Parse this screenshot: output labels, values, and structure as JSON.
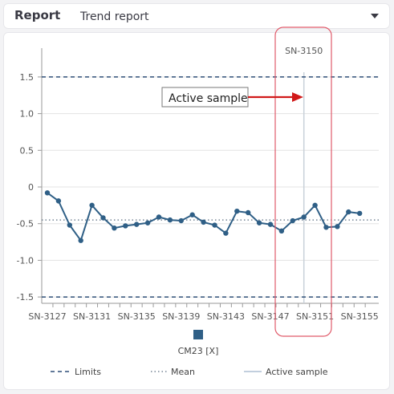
{
  "header": {
    "title": "Report",
    "select_value": "Trend report"
  },
  "colors": {
    "series": "#2f5f86",
    "mean": "#5a6c80",
    "limits": "#2f4f78",
    "active": "#c9d1d9",
    "highlight_box": "#e05a6a",
    "arrow": "#d11a1a",
    "grid": "#e3e3e3"
  },
  "chart_data": {
    "type": "line",
    "y_ticks": [
      -1.5,
      -1.0,
      -0.5,
      0,
      0.5,
      1.0,
      1.5
    ],
    "y_tick_labels": [
      "-1.5",
      "-1.0",
      "-0.5",
      "0",
      "0.5",
      "1.0",
      "1.5"
    ],
    "ylim": [
      -1.6,
      1.6
    ],
    "x_categories": [
      "SN-3127",
      "SN-3128",
      "SN-3129",
      "SN-3130",
      "SN-3131",
      "SN-3132",
      "SN-3133",
      "SN-3134",
      "SN-3135",
      "SN-3136",
      "SN-3137",
      "SN-3138",
      "SN-3139",
      "SN-3140",
      "SN-3141",
      "SN-3142",
      "SN-3143",
      "SN-3144",
      "SN-3145",
      "SN-3146",
      "SN-3147",
      "SN-3148",
      "SN-3149",
      "SN-3150",
      "SN-3151",
      "SN-3152",
      "SN-3153",
      "SN-3154",
      "SN-3155"
    ],
    "x_tick_labels": [
      "SN-3127",
      "SN-3131",
      "SN-3135",
      "SN-3139",
      "SN-3143",
      "SN-3147",
      "SN-3151",
      "SN-3155"
    ],
    "series": [
      {
        "name": "CM23 [X]",
        "values": [
          -0.08,
          -0.19,
          -0.52,
          -0.73,
          -0.25,
          -0.42,
          -0.56,
          -0.53,
          -0.51,
          -0.49,
          -0.41,
          -0.45,
          -0.46,
          -0.38,
          -0.48,
          -0.52,
          -0.63,
          -0.33,
          -0.35,
          -0.49,
          -0.51,
          -0.6,
          -0.46,
          -0.41,
          -0.25,
          -0.55,
          -0.54,
          -0.34,
          -0.36
        ]
      }
    ],
    "mean": -0.45,
    "limits": [
      1.5,
      -1.5
    ],
    "active_sample": "SN-3150",
    "grid": true,
    "legend": {
      "series_label": "CM23 [X]",
      "items": [
        "Limits",
        "Mean",
        "Active sample"
      ]
    },
    "annotation": {
      "text": "Active sample",
      "target_label": "SN-3150"
    }
  }
}
